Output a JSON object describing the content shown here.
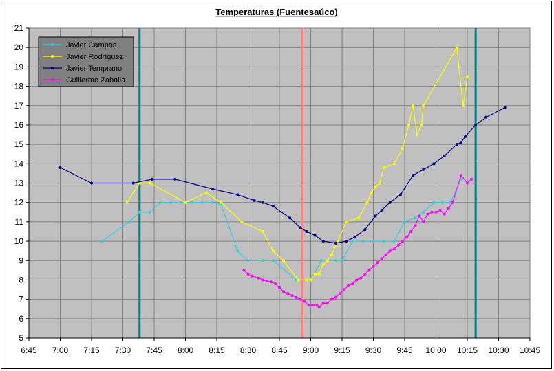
{
  "chart_data": {
    "type": "line",
    "title": "Temperaturas (Fuentesaúco)",
    "xlabel": "",
    "ylabel": "",
    "x_ticks": [
      "6:45",
      "7:00",
      "7:15",
      "7:30",
      "7:45",
      "8:00",
      "8:15",
      "8:30",
      "8:45",
      "9:00",
      "9:15",
      "9:30",
      "9:45",
      "10:00",
      "10:15",
      "10:30",
      "10:45"
    ],
    "xlim": [
      "6:45",
      "10:45"
    ],
    "ylim": [
      5,
      21
    ],
    "y_ticks": [
      5,
      6,
      7,
      8,
      9,
      10,
      11,
      12,
      13,
      14,
      15,
      16,
      17,
      18,
      19,
      20,
      21
    ],
    "grid": true,
    "plot_background": "#c0c0c0",
    "grid_color": "#808080",
    "legend_position": "top-left",
    "legend_background": "#808080",
    "vertical_lines": [
      {
        "x": "7:38",
        "color": "#008080"
      },
      {
        "x": "8:56",
        "color": "#ff8080"
      },
      {
        "x": "10:19",
        "color": "#008080"
      }
    ],
    "series": [
      {
        "name": "Javier Campos",
        "color": "#33ccdd",
        "points": [
          [
            "7:20",
            10.0
          ],
          [
            "7:33",
            11.0
          ],
          [
            "7:38",
            11.5
          ],
          [
            "7:43",
            11.5
          ],
          [
            "7:48",
            12.0
          ],
          [
            "7:53",
            12.0
          ],
          [
            "7:58",
            12.0
          ],
          [
            "8:03",
            12.0
          ],
          [
            "8:08",
            12.0
          ],
          [
            "8:13",
            12.0
          ],
          [
            "8:17",
            11.9
          ],
          [
            "8:25",
            9.5
          ],
          [
            "8:30",
            9.0
          ],
          [
            "8:37",
            9.0
          ],
          [
            "8:42",
            9.0
          ],
          [
            "8:53",
            8.0
          ],
          [
            "8:58",
            8.0
          ],
          [
            "9:00",
            8.0
          ],
          [
            "9:05",
            9.0
          ],
          [
            "9:08",
            9.0
          ],
          [
            "9:12",
            9.0
          ],
          [
            "9:15",
            9.0
          ],
          [
            "9:20",
            10.0
          ],
          [
            "9:25",
            10.0
          ],
          [
            "9:30",
            10.0
          ],
          [
            "9:35",
            10.0
          ],
          [
            "9:40",
            10.0
          ],
          [
            "9:45",
            11.0
          ],
          [
            "9:50",
            11.2
          ],
          [
            "9:54",
            11.5
          ],
          [
            "9:59",
            12.0
          ],
          [
            "10:03",
            12.0
          ],
          [
            "10:07",
            12.0
          ],
          [
            "10:12",
            13.2
          ]
        ]
      },
      {
        "name": "Javier Rodríguez",
        "color": "#ffff00",
        "points": [
          [
            "7:32",
            12.0
          ],
          [
            "7:38",
            13.0
          ],
          [
            "7:43",
            13.0
          ],
          [
            "8:00",
            12.0
          ],
          [
            "8:10",
            12.5
          ],
          [
            "8:17",
            12.0
          ],
          [
            "8:27",
            11.0
          ],
          [
            "8:37",
            10.5
          ],
          [
            "8:42",
            9.5
          ],
          [
            "8:47",
            9.0
          ],
          [
            "8:54",
            8.0
          ],
          [
            "8:58",
            8.0
          ],
          [
            "9:00",
            8.0
          ],
          [
            "9:02",
            8.3
          ],
          [
            "9:04",
            8.3
          ],
          [
            "9:06",
            8.8
          ],
          [
            "9:08",
            9.0
          ],
          [
            "9:10",
            9.3
          ],
          [
            "9:13",
            10.0
          ],
          [
            "9:17",
            11.0
          ],
          [
            "9:23",
            11.2
          ],
          [
            "9:27",
            12.0
          ],
          [
            "9:29",
            12.5
          ],
          [
            "9:31",
            12.8
          ],
          [
            "9:33",
            13.0
          ],
          [
            "9:35",
            13.8
          ],
          [
            "9:40",
            14.0
          ],
          [
            "9:44",
            14.8
          ],
          [
            "9:47",
            16.0
          ],
          [
            "9:49",
            17.0
          ],
          [
            "9:51",
            15.5
          ],
          [
            "9:53",
            16.0
          ],
          [
            "9:54",
            17.0
          ],
          [
            "10:10",
            20.0
          ],
          [
            "10:13",
            17.0
          ],
          [
            "10:15",
            18.5
          ]
        ]
      },
      {
        "name": "Javier Temprano",
        "color": "#000080",
        "points": [
          [
            "7:00",
            13.8
          ],
          [
            "7:15",
            13.0
          ],
          [
            "7:35",
            13.0
          ],
          [
            "7:44",
            13.2
          ],
          [
            "7:55",
            13.2
          ],
          [
            "8:13",
            12.7
          ],
          [
            "8:25",
            12.4
          ],
          [
            "8:33",
            12.1
          ],
          [
            "8:37",
            12.0
          ],
          [
            "8:42",
            11.8
          ],
          [
            "8:50",
            11.2
          ],
          [
            "8:55",
            10.7
          ],
          [
            "8:58",
            10.5
          ],
          [
            "9:02",
            10.3
          ],
          [
            "9:06",
            10.0
          ],
          [
            "9:12",
            9.9
          ],
          [
            "9:17",
            10.0
          ],
          [
            "9:21",
            10.2
          ],
          [
            "9:26",
            10.6
          ],
          [
            "9:31",
            11.3
          ],
          [
            "9:34",
            11.6
          ],
          [
            "9:38",
            12.0
          ],
          [
            "9:43",
            12.4
          ],
          [
            "9:49",
            13.4
          ],
          [
            "9:54",
            13.7
          ],
          [
            "9:59",
            14.0
          ],
          [
            "10:04",
            14.4
          ],
          [
            "10:10",
            15.0
          ],
          [
            "10:12",
            15.1
          ],
          [
            "10:14",
            15.4
          ],
          [
            "10:19",
            16.0
          ],
          [
            "10:24",
            16.4
          ],
          [
            "10:33",
            16.9
          ]
        ]
      },
      {
        "name": "Guillermo Zaballa",
        "color": "#ff00ff",
        "points": [
          [
            "8:28",
            8.5
          ],
          [
            "8:30",
            8.3
          ],
          [
            "8:32",
            8.2
          ],
          [
            "8:35",
            8.1
          ],
          [
            "8:37",
            8.0
          ],
          [
            "8:39",
            7.95
          ],
          [
            "8:41",
            7.9
          ],
          [
            "8:43",
            7.8
          ],
          [
            "8:45",
            7.6
          ],
          [
            "8:47",
            7.4
          ],
          [
            "8:49",
            7.3
          ],
          [
            "8:51",
            7.2
          ],
          [
            "8:53",
            7.1
          ],
          [
            "8:55",
            7.0
          ],
          [
            "8:57",
            6.9
          ],
          [
            "8:59",
            6.7
          ],
          [
            "9:01",
            6.7
          ],
          [
            "9:03",
            6.7
          ],
          [
            "9:04",
            6.6
          ],
          [
            "9:06",
            6.8
          ],
          [
            "9:08",
            6.8
          ],
          [
            "9:10",
            7.0
          ],
          [
            "9:12",
            7.1
          ],
          [
            "9:14",
            7.3
          ],
          [
            "9:16",
            7.5
          ],
          [
            "9:18",
            7.7
          ],
          [
            "9:20",
            7.8
          ],
          [
            "9:22",
            8.0
          ],
          [
            "9:24",
            8.1
          ],
          [
            "9:26",
            8.3
          ],
          [
            "9:28",
            8.5
          ],
          [
            "9:30",
            8.7
          ],
          [
            "9:32",
            8.9
          ],
          [
            "9:34",
            9.1
          ],
          [
            "9:36",
            9.3
          ],
          [
            "9:38",
            9.5
          ],
          [
            "9:40",
            9.6
          ],
          [
            "9:42",
            9.8
          ],
          [
            "9:44",
            10.0
          ],
          [
            "9:46",
            10.2
          ],
          [
            "9:48",
            10.5
          ],
          [
            "9:50",
            10.8
          ],
          [
            "9:52",
            11.3
          ],
          [
            "9:54",
            11.0
          ],
          [
            "9:56",
            11.4
          ],
          [
            "9:58",
            11.5
          ],
          [
            "10:00",
            11.5
          ],
          [
            "10:02",
            11.6
          ],
          [
            "10:04",
            11.4
          ],
          [
            "10:06",
            11.7
          ],
          [
            "10:08",
            12.0
          ],
          [
            "10:12",
            13.4
          ],
          [
            "10:15",
            13.0
          ],
          [
            "10:17",
            13.2
          ]
        ]
      }
    ]
  }
}
